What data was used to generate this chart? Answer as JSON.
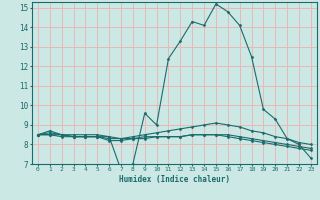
{
  "xlabel": "Humidex (Indice chaleur)",
  "xlim": [
    -0.5,
    23.5
  ],
  "ylim": [
    7,
    15.3
  ],
  "yticks": [
    7,
    8,
    9,
    10,
    11,
    12,
    13,
    14,
    15
  ],
  "xticks": [
    0,
    1,
    2,
    3,
    4,
    5,
    6,
    7,
    8,
    9,
    10,
    11,
    12,
    13,
    14,
    15,
    16,
    17,
    18,
    19,
    20,
    21,
    22,
    23
  ],
  "background_color": "#cce8e5",
  "grid_color": "#e8b8b8",
  "line_color": "#1a6b6b",
  "curves": [
    {
      "x": [
        0,
        1,
        2,
        3,
        4,
        5,
        6,
        7,
        8,
        9,
        10,
        11,
        12,
        13,
        14,
        15,
        16,
        17,
        18,
        19,
        20,
        21,
        22,
        23
      ],
      "y": [
        8.5,
        8.7,
        8.5,
        8.5,
        8.5,
        8.5,
        8.4,
        6.7,
        7.0,
        9.6,
        9.0,
        12.4,
        13.3,
        14.3,
        14.1,
        15.2,
        14.8,
        14.1,
        12.5,
        9.8,
        9.3,
        8.3,
        8.0,
        7.3
      ]
    },
    {
      "x": [
        0,
        1,
        2,
        3,
        4,
        5,
        6,
        7,
        8,
        9,
        10,
        11,
        12,
        13,
        14,
        15,
        16,
        17,
        18,
        19,
        20,
        21,
        22,
        23
      ],
      "y": [
        8.5,
        8.6,
        8.5,
        8.4,
        8.4,
        8.4,
        8.4,
        8.3,
        8.4,
        8.5,
        8.6,
        8.7,
        8.8,
        8.9,
        9.0,
        9.1,
        9.0,
        8.9,
        8.7,
        8.6,
        8.4,
        8.3,
        8.1,
        8.0
      ]
    },
    {
      "x": [
        0,
        1,
        2,
        3,
        4,
        5,
        6,
        7,
        8,
        9,
        10,
        11,
        12,
        13,
        14,
        15,
        16,
        17,
        18,
        19,
        20,
        21,
        22,
        23
      ],
      "y": [
        8.5,
        8.5,
        8.4,
        8.4,
        8.4,
        8.4,
        8.3,
        8.3,
        8.3,
        8.4,
        8.4,
        8.4,
        8.4,
        8.5,
        8.5,
        8.5,
        8.5,
        8.4,
        8.3,
        8.2,
        8.1,
        8.0,
        7.9,
        7.8
      ]
    },
    {
      "x": [
        0,
        1,
        2,
        3,
        4,
        5,
        6,
        7,
        8,
        9,
        10,
        11,
        12,
        13,
        14,
        15,
        16,
        17,
        18,
        19,
        20,
        21,
        22,
        23
      ],
      "y": [
        8.5,
        8.5,
        8.5,
        8.4,
        8.4,
        8.4,
        8.2,
        8.2,
        8.3,
        8.3,
        8.4,
        8.4,
        8.4,
        8.5,
        8.5,
        8.5,
        8.4,
        8.3,
        8.2,
        8.1,
        8.0,
        7.9,
        7.8,
        7.7
      ]
    }
  ]
}
